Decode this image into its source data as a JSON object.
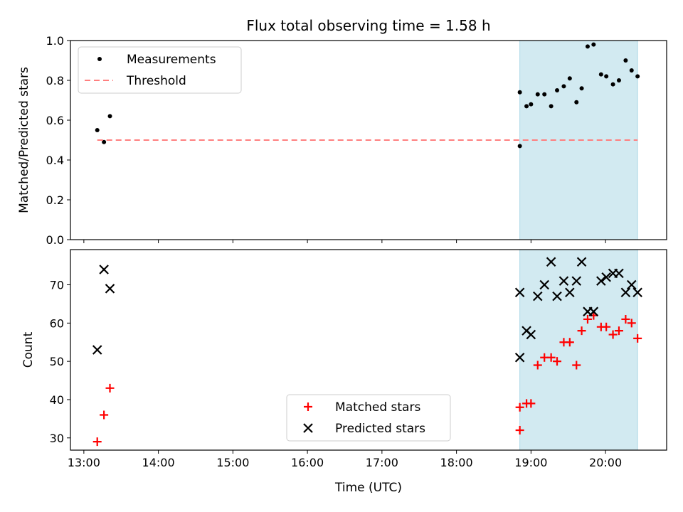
{
  "chart_data": [
    {
      "type": "scatter",
      "title": "Flux total observing time = 1.58 h",
      "xlabel": "",
      "ylabel": "Matched/Predicted stars",
      "ylim": [
        0.0,
        1.0
      ],
      "yticks": [
        "0.0",
        "0.2",
        "0.4",
        "0.6",
        "0.8",
        "1.0"
      ],
      "xlim_hours": [
        12.82,
        20.82
      ],
      "xtick_hours": [
        13,
        14,
        15,
        16,
        17,
        18,
        19,
        20
      ],
      "highlight_span_hours": [
        18.85,
        20.43
      ],
      "highlight_color": "#add8e6",
      "legend_position": "upper-left",
      "series": [
        {
          "name": "Measurements",
          "marker": "dot",
          "color": "#000000",
          "x": [
            13.18,
            13.27,
            13.35,
            18.85,
            18.85,
            18.94,
            19.0,
            19.09,
            19.18,
            19.27,
            19.35,
            19.44,
            19.52,
            19.61,
            19.68,
            19.76,
            19.84,
            19.94,
            20.01,
            20.1,
            20.18,
            20.27,
            20.35,
            20.43
          ],
          "y": [
            0.55,
            0.49,
            0.62,
            0.47,
            0.74,
            0.67,
            0.68,
            0.73,
            0.73,
            0.67,
            0.75,
            0.77,
            0.81,
            0.69,
            0.76,
            0.97,
            0.98,
            0.83,
            0.82,
            0.78,
            0.8,
            0.9,
            0.85,
            0.82
          ]
        },
        {
          "name": "Threshold",
          "marker": "dashed-line",
          "color": "#ff7f7f",
          "x": [
            13.18,
            20.43
          ],
          "y": [
            0.5,
            0.5
          ]
        }
      ]
    },
    {
      "type": "scatter",
      "title": "",
      "xlabel": "Time (UTC)",
      "ylabel": "Count",
      "ylim": [
        26.8,
        79.2
      ],
      "yticks": [
        "30",
        "40",
        "50",
        "60",
        "70"
      ],
      "xlim_hours": [
        12.82,
        20.82
      ],
      "xticks": [
        "13:00",
        "14:00",
        "15:00",
        "16:00",
        "17:00",
        "18:00",
        "19:00",
        "20:00"
      ],
      "xtick_hours": [
        13,
        14,
        15,
        16,
        17,
        18,
        19,
        20
      ],
      "highlight_span_hours": [
        18.85,
        20.43
      ],
      "highlight_color": "#add8e6",
      "legend_position": "lower-center",
      "series": [
        {
          "name": "Matched stars",
          "marker": "plus",
          "color": "#ff0000",
          "x": [
            13.18,
            13.27,
            13.35,
            18.85,
            18.85,
            18.94,
            19.0,
            19.09,
            19.18,
            19.27,
            19.35,
            19.44,
            19.52,
            19.61,
            19.68,
            19.76,
            19.84,
            19.94,
            20.01,
            20.1,
            20.18,
            20.27,
            20.35,
            20.43
          ],
          "y": [
            29,
            36,
            43,
            32,
            38,
            39,
            39,
            49,
            51,
            51,
            50,
            55,
            55,
            49,
            58,
            61,
            62,
            59,
            59,
            57,
            58,
            61,
            60,
            56
          ]
        },
        {
          "name": "Predicted stars",
          "marker": "x",
          "color": "#000000",
          "x": [
            13.18,
            13.27,
            13.35,
            18.85,
            18.85,
            18.94,
            19.0,
            19.09,
            19.18,
            19.27,
            19.35,
            19.44,
            19.52,
            19.61,
            19.68,
            19.76,
            19.84,
            19.94,
            20.01,
            20.1,
            20.18,
            20.27,
            20.35,
            20.43
          ],
          "y": [
            53,
            74,
            69,
            51,
            68,
            58,
            57,
            67,
            70,
            76,
            67,
            71,
            68,
            71,
            76,
            63,
            63,
            71,
            72,
            73,
            73,
            68,
            70,
            68
          ]
        }
      ]
    }
  ]
}
